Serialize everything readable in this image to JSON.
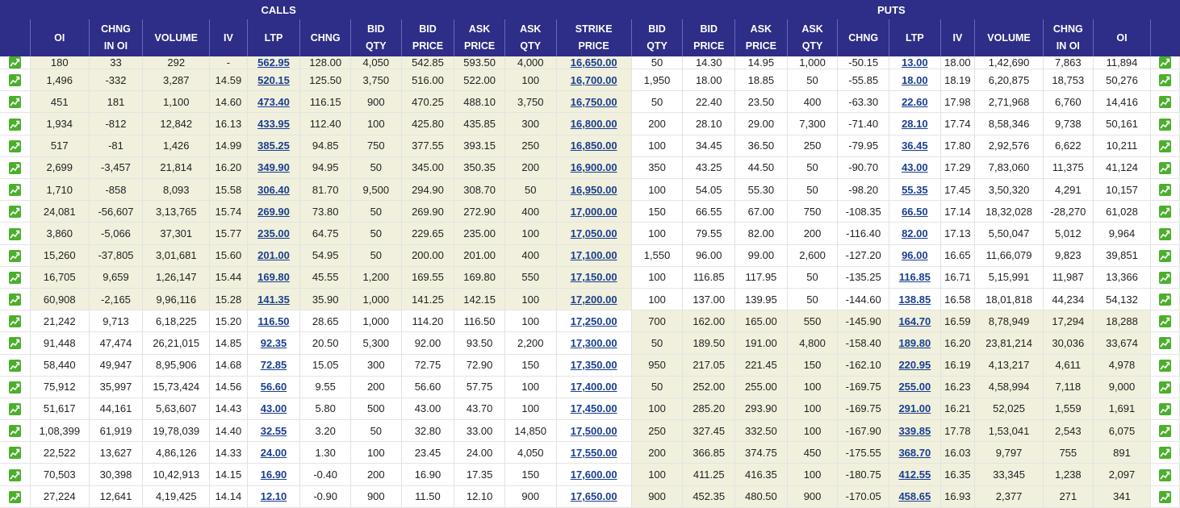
{
  "section_titles": {
    "calls": "CALLS",
    "puts": "PUTS"
  },
  "headers": {
    "calls": [
      [
        "OI"
      ],
      [
        "CHNG",
        "IN OI"
      ],
      [
        "VOLUME"
      ],
      [
        "IV"
      ],
      [
        "LTP"
      ],
      [
        "CHNG"
      ],
      [
        "BID",
        "QTY"
      ],
      [
        "BID",
        "PRICE"
      ],
      [
        "ASK",
        "PRICE"
      ],
      [
        "ASK",
        "QTY"
      ]
    ],
    "strike": [
      "STRIKE",
      "PRICE"
    ],
    "puts": [
      [
        "BID",
        "QTY"
      ],
      [
        "BID",
        "PRICE"
      ],
      [
        "ASK",
        "PRICE"
      ],
      [
        "ASK",
        "QTY"
      ],
      [
        "CHNG"
      ],
      [
        "LTP"
      ],
      [
        "IV"
      ],
      [
        "VOLUME"
      ],
      [
        "CHNG",
        "IN OI"
      ],
      [
        "OI"
      ]
    ]
  },
  "icon": "chart-trend-icon",
  "colors": {
    "header_bg": "#2e2d87",
    "itm_bg": "#f0f0dd",
    "positive": "#2f8a1f",
    "negative": "#d01c1c",
    "link": "#1a3f8f"
  },
  "rows": [
    {
      "call": [
        "180",
        "33",
        "292",
        "-",
        "562.95",
        "128.00",
        "4,050",
        "542.85",
        "593.50",
        "4,000"
      ],
      "strike": "16,650.00",
      "put": [
        "50",
        "14.30",
        "14.95",
        "1,000",
        "-50.15",
        "13.00",
        "18.00",
        "1,42,690",
        "7,863",
        "11,894"
      ],
      "call_itm": true,
      "put_itm": false
    },
    {
      "call": [
        "1,496",
        "-332",
        "3,287",
        "14.59",
        "520.15",
        "125.50",
        "3,750",
        "516.00",
        "522.00",
        "100"
      ],
      "strike": "16,700.00",
      "put": [
        "1,950",
        "18.00",
        "18.85",
        "50",
        "-55.85",
        "18.00",
        "18.19",
        "6,20,875",
        "18,753",
        "50,276"
      ],
      "call_itm": true,
      "put_itm": false
    },
    {
      "call": [
        "451",
        "181",
        "1,100",
        "14.60",
        "473.40",
        "116.15",
        "900",
        "470.25",
        "488.10",
        "3,750"
      ],
      "strike": "16,750.00",
      "put": [
        "50",
        "22.40",
        "23.50",
        "400",
        "-63.30",
        "22.60",
        "17.98",
        "2,71,968",
        "6,760",
        "14,416"
      ],
      "call_itm": true,
      "put_itm": false
    },
    {
      "call": [
        "1,934",
        "-812",
        "12,842",
        "16.13",
        "433.95",
        "112.40",
        "100",
        "425.80",
        "435.85",
        "300"
      ],
      "strike": "16,800.00",
      "put": [
        "200",
        "28.10",
        "29.00",
        "7,300",
        "-71.40",
        "28.10",
        "17.74",
        "8,58,346",
        "9,738",
        "50,161"
      ],
      "call_itm": true,
      "put_itm": false
    },
    {
      "call": [
        "517",
        "-81",
        "1,426",
        "14.99",
        "385.25",
        "94.85",
        "750",
        "377.55",
        "393.15",
        "250"
      ],
      "strike": "16,850.00",
      "put": [
        "100",
        "34.45",
        "36.50",
        "250",
        "-79.95",
        "36.45",
        "17.80",
        "2,92,576",
        "6,622",
        "10,211"
      ],
      "call_itm": true,
      "put_itm": false
    },
    {
      "call": [
        "2,699",
        "-3,457",
        "21,814",
        "16.20",
        "349.90",
        "94.95",
        "50",
        "345.00",
        "350.35",
        "200"
      ],
      "strike": "16,900.00",
      "put": [
        "350",
        "43.25",
        "44.50",
        "50",
        "-90.70",
        "43.00",
        "17.29",
        "7,83,060",
        "11,375",
        "41,124"
      ],
      "call_itm": true,
      "put_itm": false
    },
    {
      "call": [
        "1,710",
        "-858",
        "8,093",
        "15.58",
        "306.40",
        "81.70",
        "9,500",
        "294.90",
        "308.70",
        "50"
      ],
      "strike": "16,950.00",
      "put": [
        "100",
        "54.05",
        "55.30",
        "50",
        "-98.20",
        "55.35",
        "17.45",
        "3,50,320",
        "4,291",
        "10,157"
      ],
      "call_itm": true,
      "put_itm": false
    },
    {
      "call": [
        "24,081",
        "-56,607",
        "3,13,765",
        "15.74",
        "269.90",
        "73.80",
        "50",
        "269.90",
        "272.90",
        "400"
      ],
      "strike": "17,000.00",
      "put": [
        "150",
        "66.55",
        "67.00",
        "750",
        "-108.35",
        "66.50",
        "17.14",
        "18,32,028",
        "-28,270",
        "61,028"
      ],
      "call_itm": true,
      "put_itm": false
    },
    {
      "call": [
        "3,860",
        "-5,066",
        "37,301",
        "15.77",
        "235.00",
        "64.75",
        "50",
        "229.65",
        "235.00",
        "100"
      ],
      "strike": "17,050.00",
      "put": [
        "100",
        "79.55",
        "82.00",
        "200",
        "-116.40",
        "82.00",
        "17.13",
        "5,50,047",
        "5,012",
        "9,964"
      ],
      "call_itm": true,
      "put_itm": false
    },
    {
      "call": [
        "15,260",
        "-37,805",
        "3,01,681",
        "15.60",
        "201.00",
        "54.95",
        "50",
        "200.00",
        "201.00",
        "400"
      ],
      "strike": "17,100.00",
      "put": [
        "1,550",
        "96.00",
        "99.00",
        "2,600",
        "-127.20",
        "96.00",
        "16.65",
        "11,66,079",
        "9,823",
        "39,851"
      ],
      "call_itm": true,
      "put_itm": false
    },
    {
      "call": [
        "16,705",
        "9,659",
        "1,26,147",
        "15.44",
        "169.80",
        "45.55",
        "1,200",
        "169.55",
        "169.80",
        "550"
      ],
      "strike": "17,150.00",
      "put": [
        "100",
        "116.85",
        "117.95",
        "50",
        "-135.25",
        "116.85",
        "16.71",
        "5,15,991",
        "11,987",
        "13,366"
      ],
      "call_itm": true,
      "put_itm": false
    },
    {
      "call": [
        "60,908",
        "-2,165",
        "9,96,116",
        "15.28",
        "141.35",
        "35.90",
        "1,000",
        "141.25",
        "142.15",
        "100"
      ],
      "strike": "17,200.00",
      "put": [
        "100",
        "137.00",
        "139.95",
        "50",
        "-144.60",
        "138.85",
        "16.58",
        "18,01,818",
        "44,234",
        "54,132"
      ],
      "call_itm": true,
      "put_itm": false
    },
    {
      "call": [
        "21,242",
        "9,713",
        "6,18,225",
        "15.20",
        "116.50",
        "28.65",
        "1,000",
        "114.20",
        "116.50",
        "100"
      ],
      "strike": "17,250.00",
      "put": [
        "700",
        "162.00",
        "165.00",
        "550",
        "-145.90",
        "164.70",
        "16.59",
        "8,78,949",
        "17,294",
        "18,288"
      ],
      "call_itm": false,
      "put_itm": true
    },
    {
      "call": [
        "91,448",
        "47,474",
        "26,21,015",
        "14.85",
        "92.35",
        "20.50",
        "5,300",
        "92.00",
        "93.50",
        "2,200"
      ],
      "strike": "17,300.00",
      "put": [
        "50",
        "189.50",
        "191.00",
        "4,800",
        "-158.40",
        "189.80",
        "16.20",
        "23,81,214",
        "30,036",
        "33,674"
      ],
      "call_itm": false,
      "put_itm": true
    },
    {
      "call": [
        "58,440",
        "49,947",
        "8,95,906",
        "14.68",
        "72.85",
        "15.05",
        "300",
        "72.75",
        "72.90",
        "150"
      ],
      "strike": "17,350.00",
      "put": [
        "950",
        "217.05",
        "221.45",
        "150",
        "-162.10",
        "220.95",
        "16.19",
        "4,13,217",
        "4,611",
        "4,978"
      ],
      "call_itm": false,
      "put_itm": true
    },
    {
      "call": [
        "75,912",
        "35,997",
        "15,73,424",
        "14.56",
        "56.60",
        "9.55",
        "200",
        "56.60",
        "57.75",
        "100"
      ],
      "strike": "17,400.00",
      "put": [
        "50",
        "252.00",
        "255.00",
        "100",
        "-169.75",
        "255.00",
        "16.23",
        "4,58,994",
        "7,118",
        "9,000"
      ],
      "call_itm": false,
      "put_itm": true
    },
    {
      "call": [
        "51,617",
        "44,161",
        "5,63,607",
        "14.43",
        "43.00",
        "5.80",
        "500",
        "43.00",
        "43.70",
        "100"
      ],
      "strike": "17,450.00",
      "put": [
        "100",
        "285.20",
        "293.90",
        "100",
        "-169.75",
        "291.00",
        "16.21",
        "52,025",
        "1,559",
        "1,691"
      ],
      "call_itm": false,
      "put_itm": true
    },
    {
      "call": [
        "1,08,399",
        "61,919",
        "19,78,039",
        "14.40",
        "32.55",
        "3.20",
        "50",
        "32.80",
        "33.00",
        "14,850"
      ],
      "strike": "17,500.00",
      "put": [
        "250",
        "327.45",
        "332.50",
        "100",
        "-167.90",
        "339.85",
        "17.78",
        "1,53,041",
        "2,543",
        "6,075"
      ],
      "call_itm": false,
      "put_itm": true
    },
    {
      "call": [
        "22,522",
        "13,627",
        "4,86,126",
        "14.33",
        "24.00",
        "1.30",
        "100",
        "23.45",
        "24.00",
        "4,050"
      ],
      "strike": "17,550.00",
      "put": [
        "200",
        "366.85",
        "374.75",
        "450",
        "-175.55",
        "368.70",
        "16.03",
        "9,797",
        "755",
        "891"
      ],
      "call_itm": false,
      "put_itm": true
    },
    {
      "call": [
        "70,503",
        "30,398",
        "10,42,913",
        "14.15",
        "16.90",
        "-0.40",
        "200",
        "16.90",
        "17.35",
        "150"
      ],
      "strike": "17,600.00",
      "put": [
        "100",
        "411.25",
        "416.35",
        "100",
        "-180.75",
        "412.55",
        "16.35",
        "33,345",
        "1,238",
        "2,097"
      ],
      "call_itm": false,
      "put_itm": true
    },
    {
      "call": [
        "27,224",
        "12,641",
        "4,19,425",
        "14.14",
        "12.10",
        "-0.90",
        "900",
        "11.50",
        "12.10",
        "900"
      ],
      "strike": "17,650.00",
      "put": [
        "900",
        "452.35",
        "480.50",
        "900",
        "-170.05",
        "458.65",
        "16.93",
        "2,377",
        "271",
        "341"
      ],
      "call_itm": false,
      "put_itm": true
    }
  ]
}
